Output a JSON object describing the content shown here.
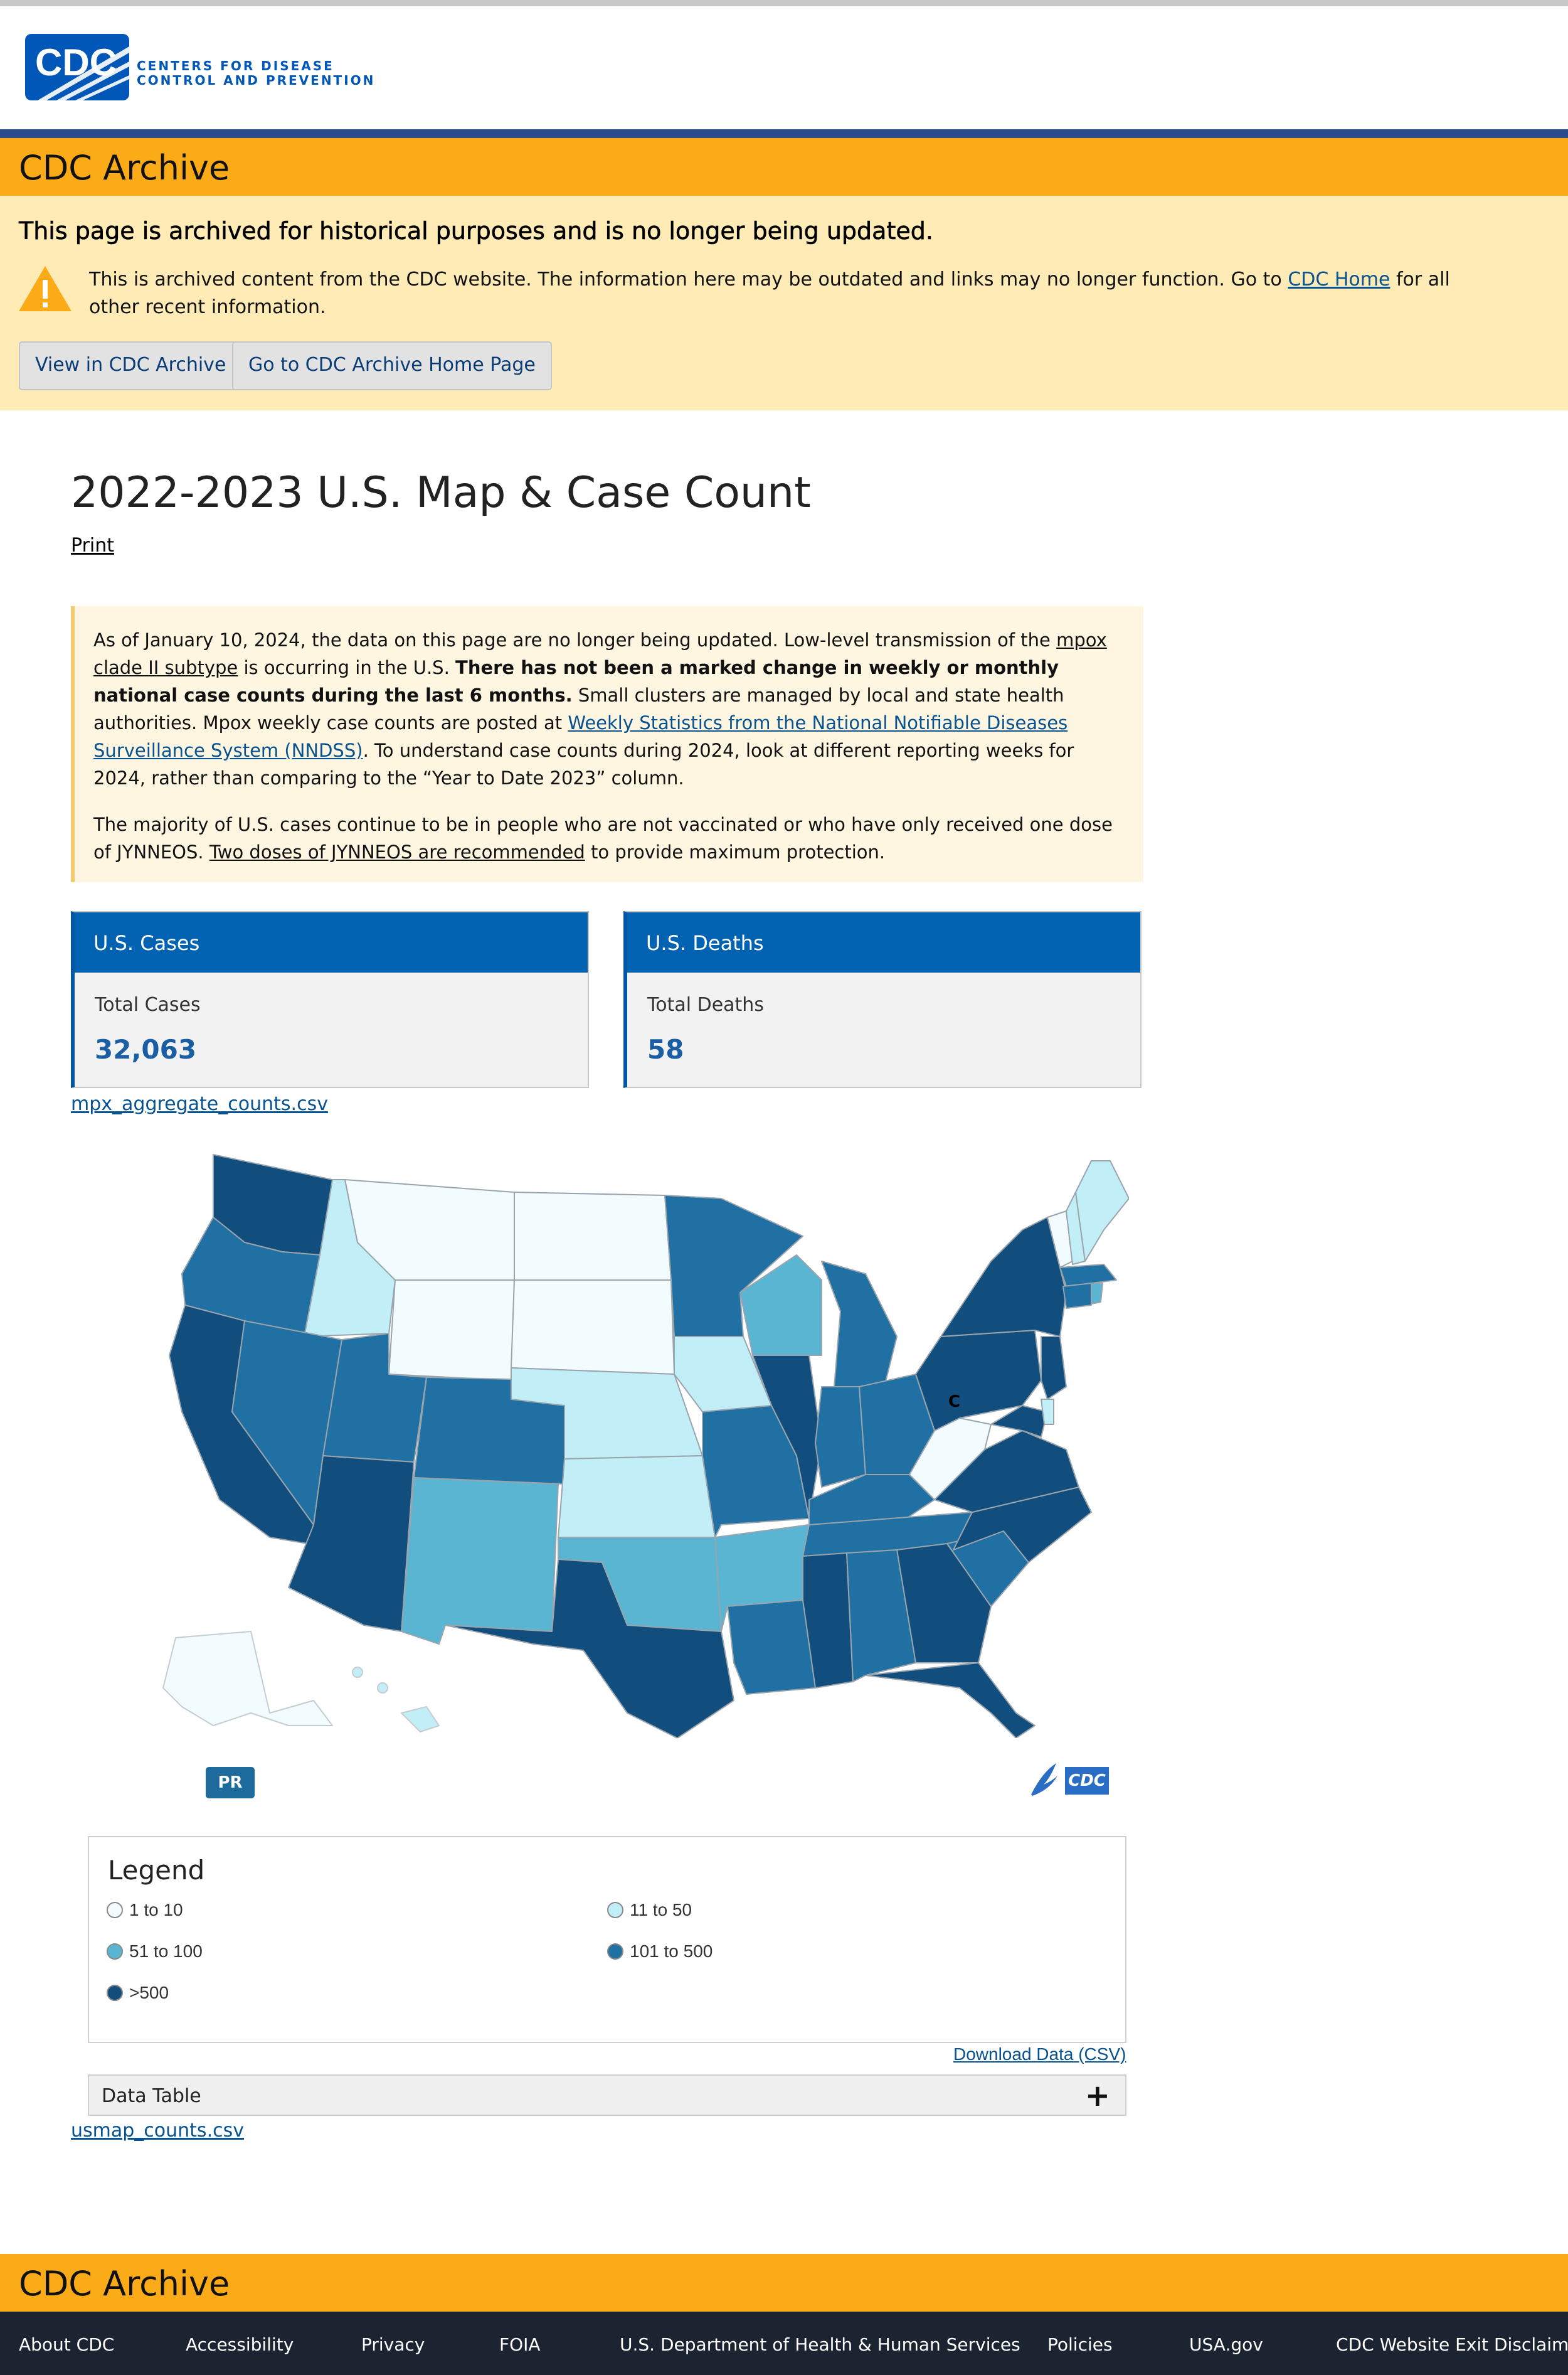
{
  "header": {
    "logo_text": "CDC",
    "org_line1": "CENTERS FOR DISEASE",
    "org_line2": "CONTROL AND PREVENTION"
  },
  "archive_bar": {
    "title": "CDC Archive"
  },
  "notice": {
    "heading": "This page is archived for historical purposes and is no longer being updated.",
    "text_before": "This is archived content from the CDC website. The information here may be outdated and links may no longer function. Go to ",
    "link_text": "CDC Home",
    "text_after": " for all other recent information.",
    "button_view": "View in CDC Archive",
    "button_home": "Go to CDC Archive Home Page"
  },
  "page": {
    "title": "2022-2023 U.S. Map & Case Count",
    "print_label": "Print"
  },
  "callout": {
    "p1_a": "As of January 10, 2024, the data on this page are no longer being updated. Low-level transmission of the ",
    "p1_link1": "mpox clade II subtype",
    "p1_b": " is occurring in the U.S. ",
    "p1_bold": "There has not been a marked change in weekly or monthly national case counts during the last 6 months.",
    "p1_c": " Small clusters are managed by local and state health authorities. Mpox weekly case counts are posted at ",
    "p1_link2": "Weekly Statistics from the National Notifiable Diseases Surveillance System (NNDSS)",
    "p1_d": ". To understand case counts during 2024, look at different reporting weeks for 2024, rather than comparing to the “Year to Date 2023” column.",
    "p2_a": "The majority of U.S. cases continue to be in people who are not vaccinated or who have only received one dose of JYNNEOS. ",
    "p2_link": "Two doses of JYNNEOS are recommended",
    "p2_b": " to provide maximum protection."
  },
  "cards": {
    "cases": {
      "header": "U.S. Cases",
      "label": "Total Cases",
      "value": "32,063"
    },
    "deaths": {
      "header": "U.S. Deaths",
      "label": "Total Deaths",
      "value": "58"
    }
  },
  "csv_links": {
    "aggregate": "mpx_aggregate_counts.csv",
    "usmap": "usmap_counts.csv"
  },
  "map": {
    "pr_label": "PR",
    "mini_logo": "CDC",
    "dc_label": "C"
  },
  "legend": {
    "title": "Legend",
    "items": [
      {
        "label": "1 to 10",
        "color": "#f2fcff"
      },
      {
        "label": "11 to 50",
        "color": "#c2eef7"
      },
      {
        "label": "51 to 100",
        "color": "#5ab5d3"
      },
      {
        "label": "101 to 500",
        "color": "#2170a3"
      },
      {
        "label": ">500",
        "color": "#114e7d"
      }
    ],
    "download_label": "Download Data (CSV)",
    "datatable_label": "Data Table",
    "expand_glyph": "+"
  },
  "footer": {
    "title": "CDC Archive",
    "links": [
      "About CDC",
      "Accessibility",
      "Privacy",
      "FOIA",
      "U.S. Department of Health & Human Services",
      "Policies",
      "USA.gov",
      "CDC Website Exit Disclaimer"
    ]
  }
}
